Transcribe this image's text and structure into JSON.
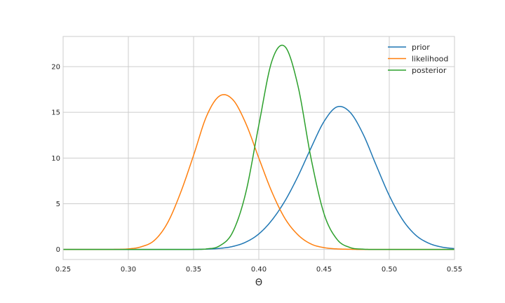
{
  "chart_data": {
    "type": "line",
    "title": "",
    "xlabel": "Θ",
    "ylabel": "",
    "xlim": [
      0.25,
      0.55
    ],
    "ylim": [
      -1.1,
      23.3
    ],
    "xticks": [
      0.25,
      0.3,
      0.35,
      0.4,
      0.45,
      0.5,
      0.55
    ],
    "xtick_labels": [
      "0.25",
      "0.30",
      "0.35",
      "0.40",
      "0.45",
      "0.50",
      "0.55"
    ],
    "yticks": [
      0,
      5,
      10,
      15,
      20
    ],
    "ytick_labels": [
      "0",
      "5",
      "10",
      "15",
      "20"
    ],
    "grid": true,
    "legend_position": "top-right",
    "series": [
      {
        "name": "prior",
        "color": "#1f77b4",
        "x": [
          0.25,
          0.26,
          0.27,
          0.28,
          0.29,
          0.3,
          0.31,
          0.32,
          0.33,
          0.34,
          0.35,
          0.36,
          0.37,
          0.38,
          0.39,
          0.4,
          0.41,
          0.42,
          0.43,
          0.44,
          0.45,
          0.46,
          0.47,
          0.48,
          0.49,
          0.5,
          0.51,
          0.52,
          0.53,
          0.54,
          0.55
        ],
        "values": [
          0,
          0,
          0,
          0,
          0,
          0,
          0,
          0,
          0,
          0.003,
          0.01,
          0.04,
          0.12,
          0.33,
          0.8,
          1.7,
          3.2,
          5.3,
          8.0,
          11.1,
          14.0,
          15.6,
          15.0,
          12.6,
          9.2,
          5.9,
          3.3,
          1.6,
          0.7,
          0.27,
          0.09
        ]
      },
      {
        "name": "likelihood",
        "color": "#ff7f0e",
        "x": [
          0.25,
          0.26,
          0.27,
          0.28,
          0.29,
          0.3,
          0.31,
          0.32,
          0.33,
          0.34,
          0.35,
          0.36,
          0.37,
          0.38,
          0.39,
          0.4,
          0.41,
          0.42,
          0.43,
          0.44,
          0.45,
          0.46,
          0.47,
          0.48,
          0.49,
          0.5,
          0.51,
          0.52,
          0.53,
          0.54,
          0.55
        ],
        "values": [
          0,
          0,
          0,
          0,
          0.01,
          0.06,
          0.3,
          1.0,
          2.9,
          6.2,
          10.3,
          14.6,
          16.8,
          16.4,
          13.8,
          10.0,
          6.3,
          3.4,
          1.6,
          0.6,
          0.2,
          0.06,
          0.02,
          0,
          0,
          0,
          0,
          0,
          0,
          0,
          0
        ]
      },
      {
        "name": "posterior",
        "color": "#2ca02c",
        "x": [
          0.25,
          0.26,
          0.27,
          0.28,
          0.29,
          0.3,
          0.31,
          0.32,
          0.33,
          0.34,
          0.35,
          0.36,
          0.37,
          0.38,
          0.39,
          0.4,
          0.41,
          0.42,
          0.43,
          0.44,
          0.45,
          0.46,
          0.47,
          0.48,
          0.49,
          0.5,
          0.51,
          0.52,
          0.53,
          0.54,
          0.55
        ],
        "values": [
          0,
          0,
          0,
          0,
          0,
          0,
          0,
          0,
          0,
          0,
          0.005,
          0.06,
          0.4,
          1.9,
          6.2,
          13.6,
          20.6,
          22.2,
          17.9,
          10.0,
          3.9,
          1.1,
          0.21,
          0.03,
          0,
          0,
          0,
          0,
          0,
          0,
          0
        ]
      }
    ]
  }
}
